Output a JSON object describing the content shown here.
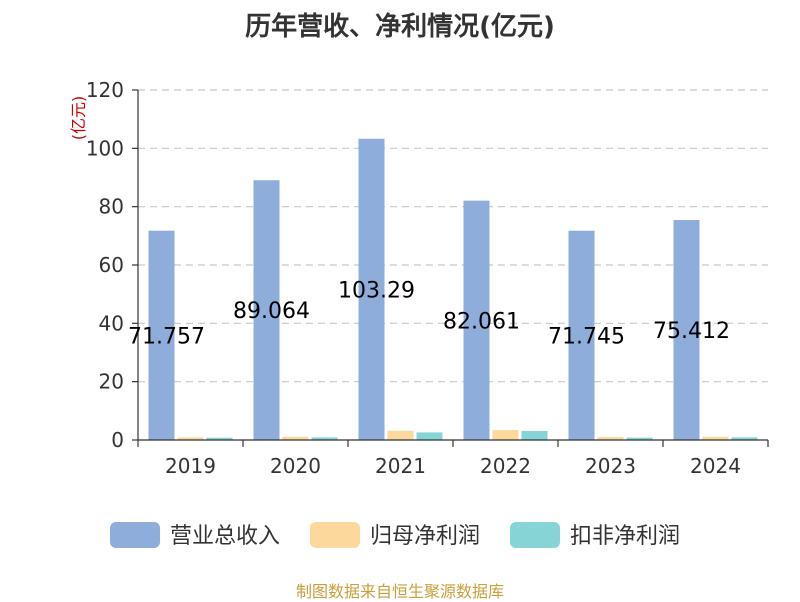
{
  "chart_data": {
    "type": "bar",
    "title": "历年营收、净利情况(亿元)",
    "ylabel": "(亿元)",
    "categories": [
      "2019",
      "2020",
      "2021",
      "2022",
      "2023",
      "2024"
    ],
    "ylim": [
      0,
      120
    ],
    "yticks": [
      0,
      20,
      40,
      60,
      80,
      100,
      120
    ],
    "grid": true,
    "legend_position": "bottom",
    "series": [
      {
        "name": "营业总收入",
        "color": "#8eaddb",
        "values": [
          71.757,
          89.064,
          103.29,
          82.061,
          71.745,
          75.412
        ],
        "labels": [
          "71.757",
          "89.064",
          "103.29",
          "82.061",
          "71.745",
          "75.412"
        ]
      },
      {
        "name": "归母净利润",
        "color": "#fdd89c",
        "values": [
          0.9,
          1.1,
          3.2,
          3.4,
          1.0,
          1.1
        ]
      },
      {
        "name": "扣非净利润",
        "color": "#86d4d6",
        "values": [
          0.8,
          0.9,
          2.6,
          3.1,
          0.8,
          0.9
        ]
      }
    ]
  },
  "footer": {
    "source": "制图数据来自恒生聚源数据库"
  }
}
